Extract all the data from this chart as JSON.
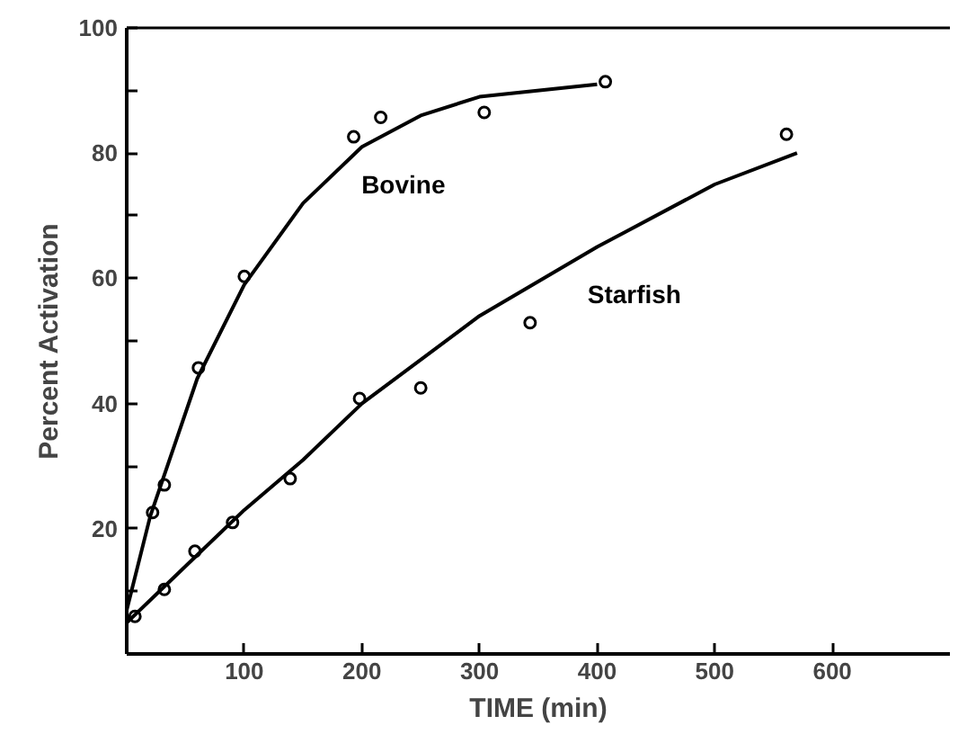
{
  "chart_data": {
    "type": "scatter",
    "xlabel": "TIME (min)",
    "ylabel": "Percent Activation",
    "xlim": [
      0,
      700
    ],
    "ylim": [
      0,
      100
    ],
    "xticks": [
      {
        "value": 0,
        "label": null
      },
      100,
      200,
      300,
      400,
      500,
      600
    ],
    "yticks": [
      {
        "value": 0,
        "label": null
      },
      {
        "value": 10,
        "label": null
      },
      20,
      {
        "value": 30,
        "label": null
      },
      40,
      {
        "value": 50,
        "label": null
      },
      60,
      {
        "value": 70,
        "label": null
      },
      80,
      {
        "value": 90,
        "label": null
      },
      100
    ],
    "grid": false,
    "series": [
      {
        "name": "Bovine",
        "marker": "circle",
        "color": "#000000",
        "x": [
          22,
          32,
          61,
          100,
          193,
          216,
          304,
          407
        ],
        "values": [
          22.6,
          27,
          45.7,
          60.3,
          82.6,
          85.7,
          86.5,
          91.4
        ]
      },
      {
        "name": "Starfish",
        "marker": "circle",
        "color": "#000000",
        "x": [
          7,
          32,
          58,
          90,
          139,
          198,
          250,
          343,
          561
        ],
        "values": [
          6,
          10.3,
          16.4,
          21,
          28,
          40.8,
          42.5,
          52.9,
          83
        ]
      },
      {
        "type": "line",
        "line_style": "solid",
        "color": "#000000",
        "x": [
          0,
          20,
          40,
          60,
          100,
          150,
          200,
          250,
          300,
          400
        ],
        "values": [
          7,
          22,
          33,
          44,
          59,
          72,
          81,
          86,
          89,
          91
        ]
      },
      {
        "type": "line",
        "line_style": "solid",
        "color": "#000000",
        "x": [
          0,
          50,
          100,
          150,
          200,
          300,
          400,
          500,
          570
        ],
        "values": [
          5,
          14,
          23,
          31,
          40,
          54,
          65,
          75,
          80
        ]
      }
    ]
  }
}
